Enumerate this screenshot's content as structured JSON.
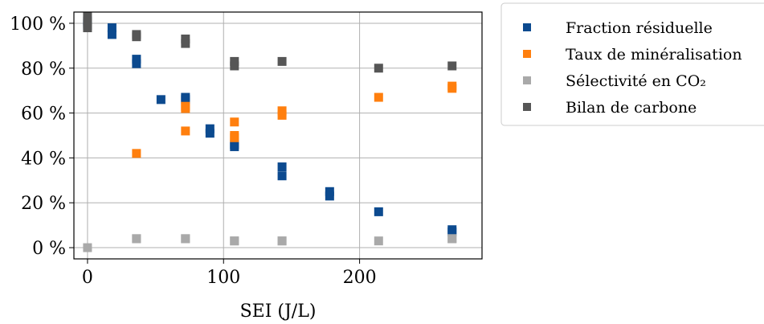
{
  "chart_data": {
    "type": "scatter",
    "title": "",
    "xlabel": "SEI (J/L)",
    "ylabel": "",
    "xlim": [
      -10,
      290
    ],
    "ylim": [
      -5,
      105
    ],
    "x_ticks": [
      0,
      100,
      200
    ],
    "x_tick_labels": [
      "0",
      "100",
      "200"
    ],
    "y_ticks": [
      0,
      20,
      40,
      60,
      80,
      100
    ],
    "y_tick_labels": [
      "0 %",
      "20 %",
      "40 %",
      "60 %",
      "80 %",
      "100 %"
    ],
    "grid": true,
    "legend_position": "outside-right-top",
    "series": [
      {
        "name": "Fraction résiduelle",
        "color": "#0c4a8f",
        "x": [
          0,
          0,
          18,
          18,
          36,
          36,
          54,
          72,
          72,
          90,
          90,
          108,
          108,
          143,
          143,
          178,
          178,
          214,
          268,
          268
        ],
        "y": [
          101,
          99,
          98,
          95,
          84,
          82,
          66,
          67,
          66,
          53,
          51,
          46,
          45,
          36,
          32,
          25,
          23,
          16,
          8,
          7
        ]
      },
      {
        "name": "Taux de minéralisation",
        "color": "#ff7f0e",
        "x": [
          36,
          72,
          72,
          72,
          108,
          108,
          108,
          143,
          143,
          214,
          268,
          268
        ],
        "y": [
          42,
          63,
          62,
          52,
          56,
          50,
          49,
          61,
          59,
          67,
          72,
          71
        ]
      },
      {
        "name": "Sélectivité en CO₂",
        "color": "#a9a9a9",
        "x": [
          0,
          36,
          36,
          72,
          72,
          108,
          108,
          143,
          143,
          214,
          268,
          268
        ],
        "y": [
          0,
          4,
          4,
          4,
          4,
          3,
          3,
          3,
          3,
          3,
          4,
          4
        ]
      },
      {
        "name": "Bilan de carbone",
        "color": "#565656",
        "x": [
          0,
          0,
          0,
          36,
          36,
          72,
          72,
          108,
          108,
          143,
          214,
          268
        ],
        "y": [
          103,
          100,
          98,
          95,
          94,
          93,
          91,
          83,
          81,
          83,
          80,
          81
        ]
      }
    ]
  }
}
